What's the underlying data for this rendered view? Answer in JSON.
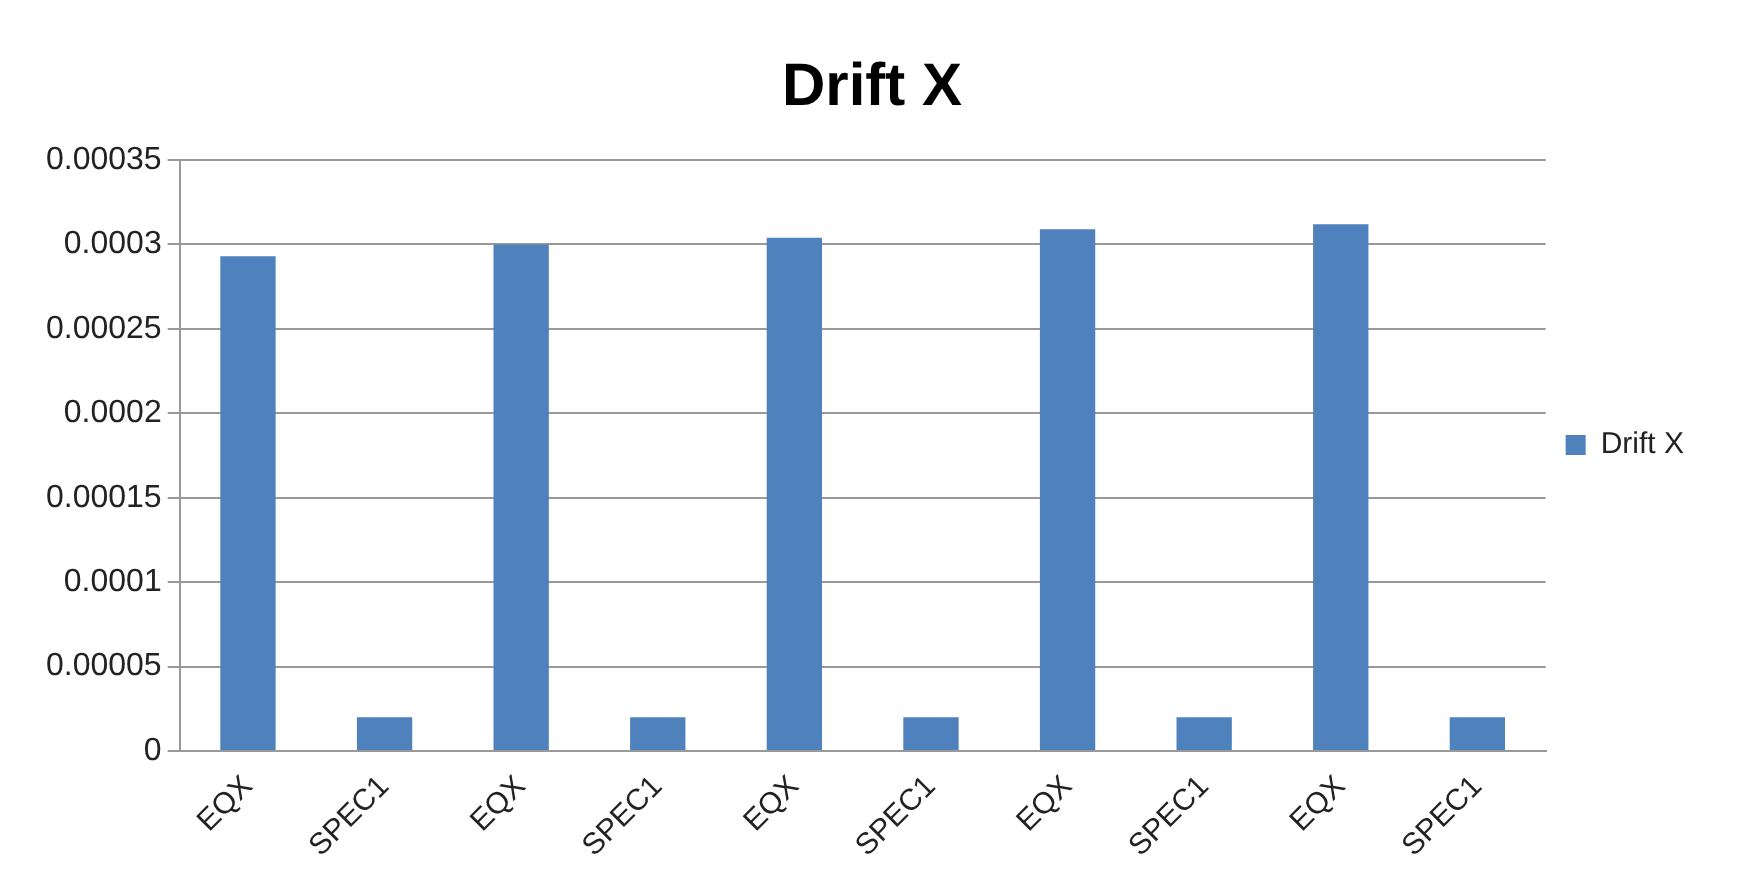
{
  "chart_data": {
    "type": "bar",
    "title": "Drift X",
    "categories": [
      "EQX",
      "SPEC1",
      "EQX",
      "SPEC1",
      "EQX",
      "SPEC1",
      "EQX",
      "SPEC1",
      "EQX",
      "SPEC1"
    ],
    "series": [
      {
        "name": "Drift X",
        "color": "#4f81bd",
        "values": [
          0.000293,
          2e-05,
          0.0003,
          2e-05,
          0.000304,
          2e-05,
          0.000309,
          2e-05,
          0.000312,
          2e-05
        ]
      }
    ],
    "ylim": [
      0,
      0.00035
    ],
    "yticks": [
      0,
      {
        "value": 5e-05,
        "label": "0.00005"
      },
      0.0001,
      0.00015,
      0.0002,
      0.00025,
      0.0003,
      0.00035
    ],
    "grid": "y",
    "legend": "right"
  }
}
